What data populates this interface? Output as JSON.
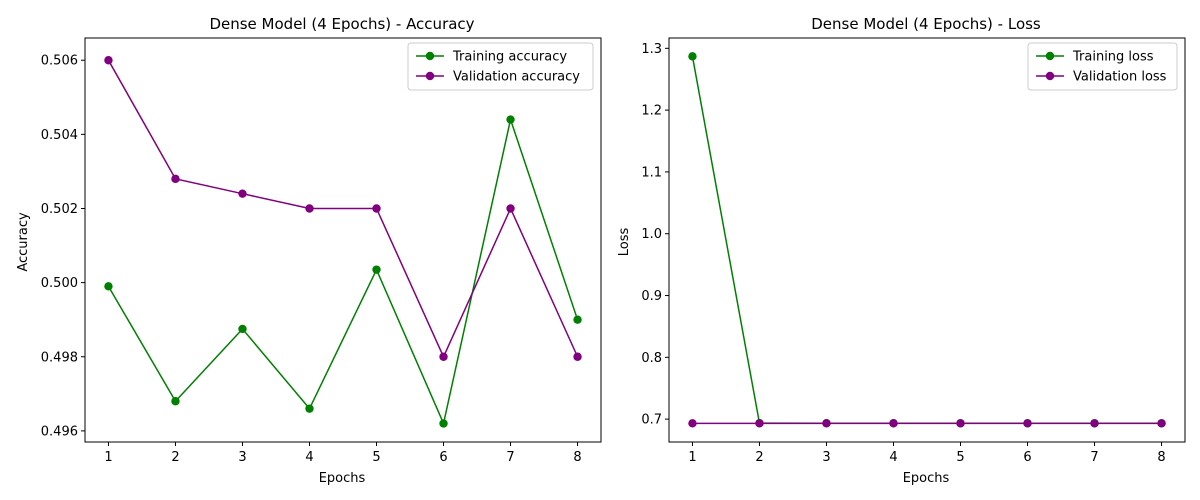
{
  "chart_data": [
    {
      "type": "line",
      "title": "Dense Model (4 Epochs) - Accuracy",
      "xlabel": "Epochs",
      "ylabel": "Accuracy",
      "x": [
        1,
        2,
        3,
        4,
        5,
        6,
        7,
        8
      ],
      "xticks": [
        1,
        2,
        3,
        4,
        5,
        6,
        7,
        8
      ],
      "xlim": [
        0.65,
        8.35
      ],
      "ylim": [
        0.4957,
        0.5066
      ],
      "yticks": [
        0.496,
        0.498,
        0.5,
        0.502,
        0.504,
        0.506
      ],
      "ytick_labels": [
        "0.496",
        "0.498",
        "0.500",
        "0.502",
        "0.504",
        "0.506"
      ],
      "legend_position": "top-right",
      "grid": false,
      "series": [
        {
          "name": "Training accuracy",
          "color": "#008000",
          "values": [
            0.4999,
            0.4968,
            0.49875,
            0.4966,
            0.50035,
            0.4962,
            0.5044,
            0.499
          ]
        },
        {
          "name": "Validation accuracy",
          "color": "#800080",
          "values": [
            0.506,
            0.5028,
            0.5024,
            0.502,
            0.502,
            0.498,
            0.502,
            0.498
          ]
        }
      ]
    },
    {
      "type": "line",
      "title": "Dense Model (4 Epochs) - Loss",
      "xlabel": "Epochs",
      "ylabel": "Loss",
      "x": [
        1,
        2,
        3,
        4,
        5,
        6,
        7,
        8
      ],
      "xticks": [
        1,
        2,
        3,
        4,
        5,
        6,
        7,
        8
      ],
      "xlim": [
        0.65,
        8.35
      ],
      "ylim": [
        0.663,
        1.3167
      ],
      "yticks": [
        0.7,
        0.8,
        0.9,
        1.0,
        1.1,
        1.2,
        1.3
      ],
      "ytick_labels": [
        "0.7",
        "0.8",
        "0.9",
        "1.0",
        "1.1",
        "1.2",
        "1.3"
      ],
      "legend_position": "top-right",
      "grid": false,
      "series": [
        {
          "name": "Training loss",
          "color": "#008000",
          "values": [
            1.287,
            0.6935,
            0.6934,
            0.6934,
            0.6933,
            0.6933,
            0.6933,
            0.6933
          ]
        },
        {
          "name": "Validation loss",
          "color": "#800080",
          "values": [
            0.6932,
            0.6932,
            0.6932,
            0.6932,
            0.6932,
            0.6932,
            0.6932,
            0.6932
          ]
        }
      ]
    }
  ]
}
